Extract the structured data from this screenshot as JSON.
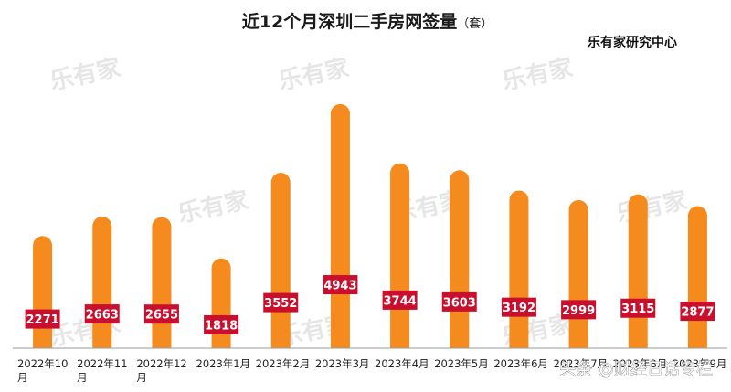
{
  "source": "乐有家研究中心",
  "watermark": "乐有家",
  "credit": "头条 @财经日话专栏",
  "colors": {
    "bar": "#F58A1F",
    "label_bg": "#C8102E",
    "axis": "#9a9a9a"
  },
  "chart_data": {
    "type": "bar",
    "title": "近12个月深圳二手房网签量",
    "title_suffix": "（套）",
    "categories": [
      "2022年10月",
      "2022年11月",
      "2022年12月",
      "2023年1月",
      "2023年2月",
      "2023年3月",
      "2023年4月",
      "2023年5月",
      "2023年6月",
      "2023年7月",
      "2023年8月",
      "2023年9月"
    ],
    "tick_label_lines": [
      [
        "2022年10",
        "月"
      ],
      [
        "2022年11",
        "月"
      ],
      [
        "2022年12",
        "月"
      ],
      [
        "2023年1月"
      ],
      [
        "2023年2月"
      ],
      [
        "2023年3月"
      ],
      [
        "2023年4月"
      ],
      [
        "2023年5月"
      ],
      [
        "2023年6月"
      ],
      [
        "2023年7月"
      ],
      [
        "2023年8月"
      ],
      [
        "2023年9月"
      ]
    ],
    "values": [
      2271,
      2663,
      2655,
      1818,
      3552,
      4943,
      3744,
      3603,
      3192,
      2999,
      3115,
      2877
    ],
    "ylim": [
      0,
      5200
    ],
    "grid": false,
    "xlabel": "",
    "ylabel": ""
  }
}
